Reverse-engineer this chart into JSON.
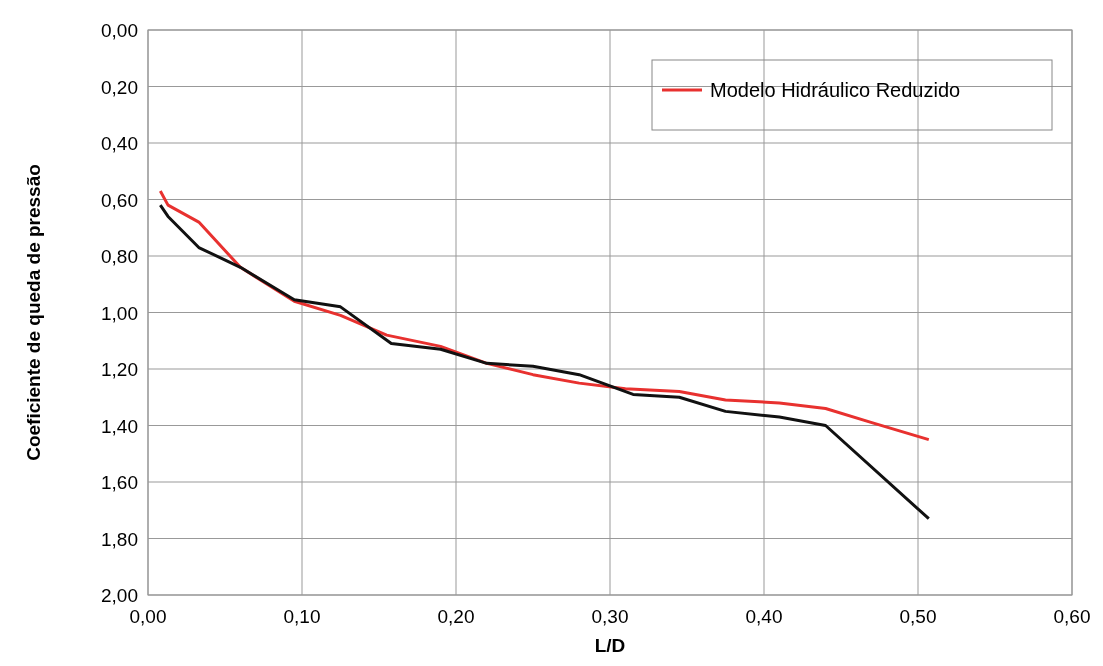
{
  "chart_data": {
    "type": "line",
    "xlabel": "L/D",
    "ylabel": "Coeficiente de queda de pressão",
    "xlim": [
      0,
      0.6
    ],
    "ylim": [
      2,
      0
    ],
    "xticks": [
      {
        "value": 0,
        "label": "0,00"
      },
      {
        "value": 0.1,
        "label": "0,10"
      },
      {
        "value": 0.2,
        "label": "0,20"
      },
      {
        "value": 0.3,
        "label": "0,30"
      },
      {
        "value": 0.4,
        "label": "0,40"
      },
      {
        "value": 0.5,
        "label": "0,50"
      },
      {
        "value": 0.6,
        "label": "0,60"
      }
    ],
    "yticks": [
      {
        "value": 0,
        "label": "0,00"
      },
      {
        "value": 0.2,
        "label": "0,20"
      },
      {
        "value": 0.4,
        "label": "0,40"
      },
      {
        "value": 0.6,
        "label": "0,60"
      },
      {
        "value": 0.8,
        "label": "0,80"
      },
      {
        "value": 1,
        "label": "1,00"
      },
      {
        "value": 1.2,
        "label": "1,20"
      },
      {
        "value": 1.4,
        "label": "1,40"
      },
      {
        "value": 1.6,
        "label": "1,60"
      },
      {
        "value": 1.8,
        "label": "1,80"
      },
      {
        "value": 2,
        "label": "2,00"
      }
    ],
    "grid": true,
    "legend": "top right",
    "line_style": "solid",
    "series": [
      {
        "name": "Modelo Hidráulico Reduzido",
        "color": "#e8312f",
        "x": [
          0.008,
          0.013,
          0.033,
          0.06,
          0.095,
          0.125,
          0.155,
          0.19,
          0.22,
          0.25,
          0.28,
          0.31,
          0.345,
          0.375,
          0.41,
          0.44,
          0.47,
          0.507
        ],
        "values": [
          0.57,
          0.62,
          0.68,
          0.84,
          0.96,
          1.01,
          1.08,
          1.12,
          1.18,
          1.22,
          1.25,
          1.27,
          1.28,
          1.31,
          1.32,
          1.34,
          1.39,
          1.45
        ]
      },
      {
        "color": "#111111",
        "x": [
          0.008,
          0.013,
          0.033,
          0.06,
          0.095,
          0.125,
          0.158,
          0.19,
          0.22,
          0.25,
          0.28,
          0.315,
          0.345,
          0.375,
          0.41,
          0.44,
          0.507
        ],
        "values": [
          0.62,
          0.66,
          0.77,
          0.84,
          0.955,
          0.98,
          1.11,
          1.13,
          1.18,
          1.19,
          1.22,
          1.29,
          1.3,
          1.35,
          1.37,
          1.4,
          1.73
        ]
      }
    ]
  }
}
